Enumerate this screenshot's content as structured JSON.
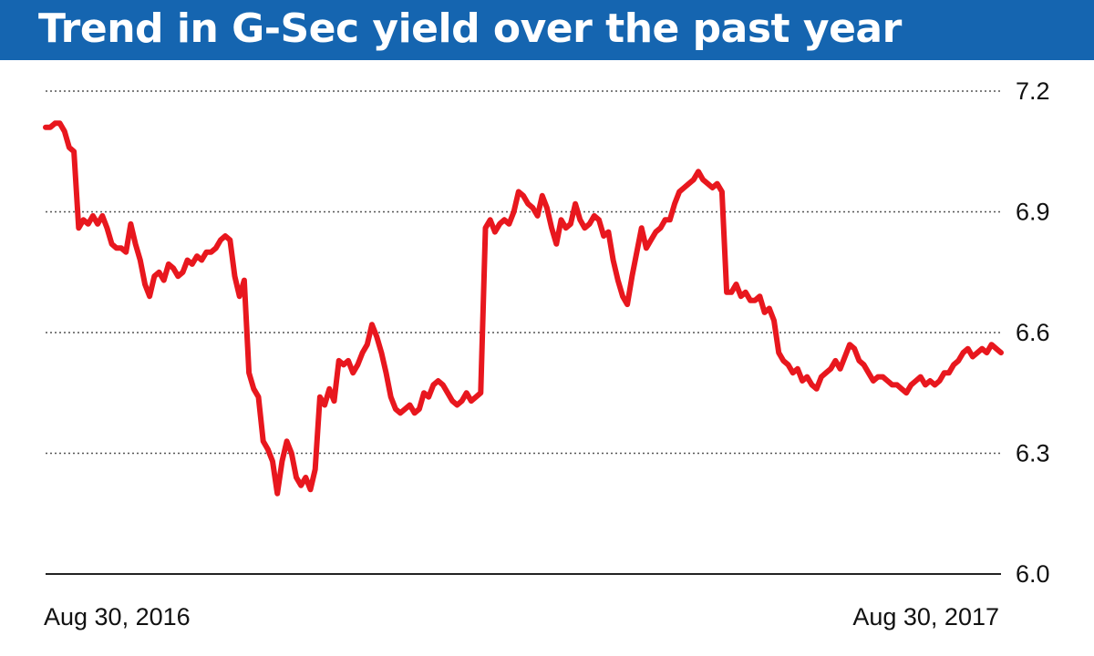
{
  "title": "Trend in G-Sec yield over the past year",
  "colors": {
    "title_bg": "#1565b0",
    "line": "#e8171e",
    "grid": "#555555",
    "axis": "#222222"
  },
  "chart_data": {
    "type": "line",
    "title": "Trend in G-Sec yield over the past year",
    "xlabel": "",
    "ylabel": "",
    "x_range": [
      "Aug 30, 2016",
      "Aug 30, 2017"
    ],
    "ylim": [
      6.0,
      7.2
    ],
    "yticks": [
      6.0,
      6.3,
      6.6,
      6.9,
      7.2
    ],
    "ytick_labels": [
      "6.0",
      "6.3",
      "6.6",
      "6.9",
      "7.2"
    ],
    "xtick_labels": [
      "Aug 30, 2016",
      "Aug 30, 2017"
    ],
    "grid": "horizontal dotted",
    "y_axis_position": "right",
    "series": [
      {
        "values": [
          7.11,
          7.11,
          7.12,
          7.12,
          7.1,
          7.06,
          7.05,
          6.86,
          6.88,
          6.87,
          6.89,
          6.87,
          6.89,
          6.86,
          6.82,
          6.81,
          6.81,
          6.8,
          6.87,
          6.82,
          6.78,
          6.72,
          6.69,
          6.74,
          6.75,
          6.73,
          6.77,
          6.76,
          6.74,
          6.75,
          6.78,
          6.77,
          6.79,
          6.78,
          6.8,
          6.8,
          6.81,
          6.83,
          6.84,
          6.83,
          6.74,
          6.69,
          6.73,
          6.5,
          6.46,
          6.44,
          6.33,
          6.31,
          6.28,
          6.2,
          6.28,
          6.33,
          6.3,
          6.24,
          6.22,
          6.24,
          6.21,
          6.26,
          6.44,
          6.42,
          6.46,
          6.43,
          6.53,
          6.52,
          6.53,
          6.5,
          6.52,
          6.55,
          6.57,
          6.62,
          6.59,
          6.55,
          6.5,
          6.44,
          6.41,
          6.4,
          6.41,
          6.42,
          6.4,
          6.41,
          6.45,
          6.44,
          6.47,
          6.48,
          6.47,
          6.45,
          6.43,
          6.42,
          6.43,
          6.45,
          6.43,
          6.44,
          6.45,
          6.86,
          6.88,
          6.85,
          6.87,
          6.88,
          6.87,
          6.9,
          6.95,
          6.94,
          6.92,
          6.91,
          6.89,
          6.94,
          6.91,
          6.86,
          6.82,
          6.88,
          6.86,
          6.87,
          6.92,
          6.88,
          6.86,
          6.87,
          6.89,
          6.88,
          6.84,
          6.85,
          6.78,
          6.73,
          6.69,
          6.67,
          6.74,
          6.8,
          6.86,
          6.81,
          6.83,
          6.85,
          6.86,
          6.88,
          6.88,
          6.92,
          6.95,
          6.96,
          6.97,
          6.98,
          7.0,
          6.98,
          6.97,
          6.96,
          6.97,
          6.95,
          6.7,
          6.7,
          6.72,
          6.69,
          6.7,
          6.68,
          6.68,
          6.69,
          6.65,
          6.66,
          6.63,
          6.55,
          6.53,
          6.52,
          6.5,
          6.51,
          6.48,
          6.49,
          6.47,
          6.46,
          6.49,
          6.5,
          6.51,
          6.53,
          6.51,
          6.54,
          6.57,
          6.56,
          6.53,
          6.52,
          6.5,
          6.48,
          6.49,
          6.49,
          6.48,
          6.47,
          6.47,
          6.46,
          6.45,
          6.47,
          6.48,
          6.49,
          6.47,
          6.48,
          6.47,
          6.48,
          6.5,
          6.5,
          6.52,
          6.53,
          6.55,
          6.56,
          6.54,
          6.55,
          6.56,
          6.55,
          6.57,
          6.56,
          6.55
        ]
      }
    ]
  }
}
